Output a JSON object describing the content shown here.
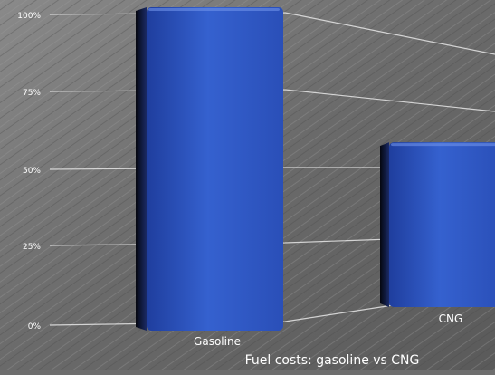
{
  "chart_data": {
    "type": "bar",
    "title": "Fuel costs: gasoline vs CNG",
    "categories": [
      "Gasoline",
      "CNG"
    ],
    "values": [
      100,
      58
    ],
    "unit": "%",
    "ylim": [
      0,
      100
    ],
    "yticks": [
      "0%",
      "25%",
      "50%",
      "75%",
      "100%"
    ],
    "grid": true,
    "colors": {
      "bar_front": "#2f57c4",
      "bar_side": "#0f1a3d",
      "grid": "#e6e6e6",
      "text": "#ffffff"
    }
  }
}
